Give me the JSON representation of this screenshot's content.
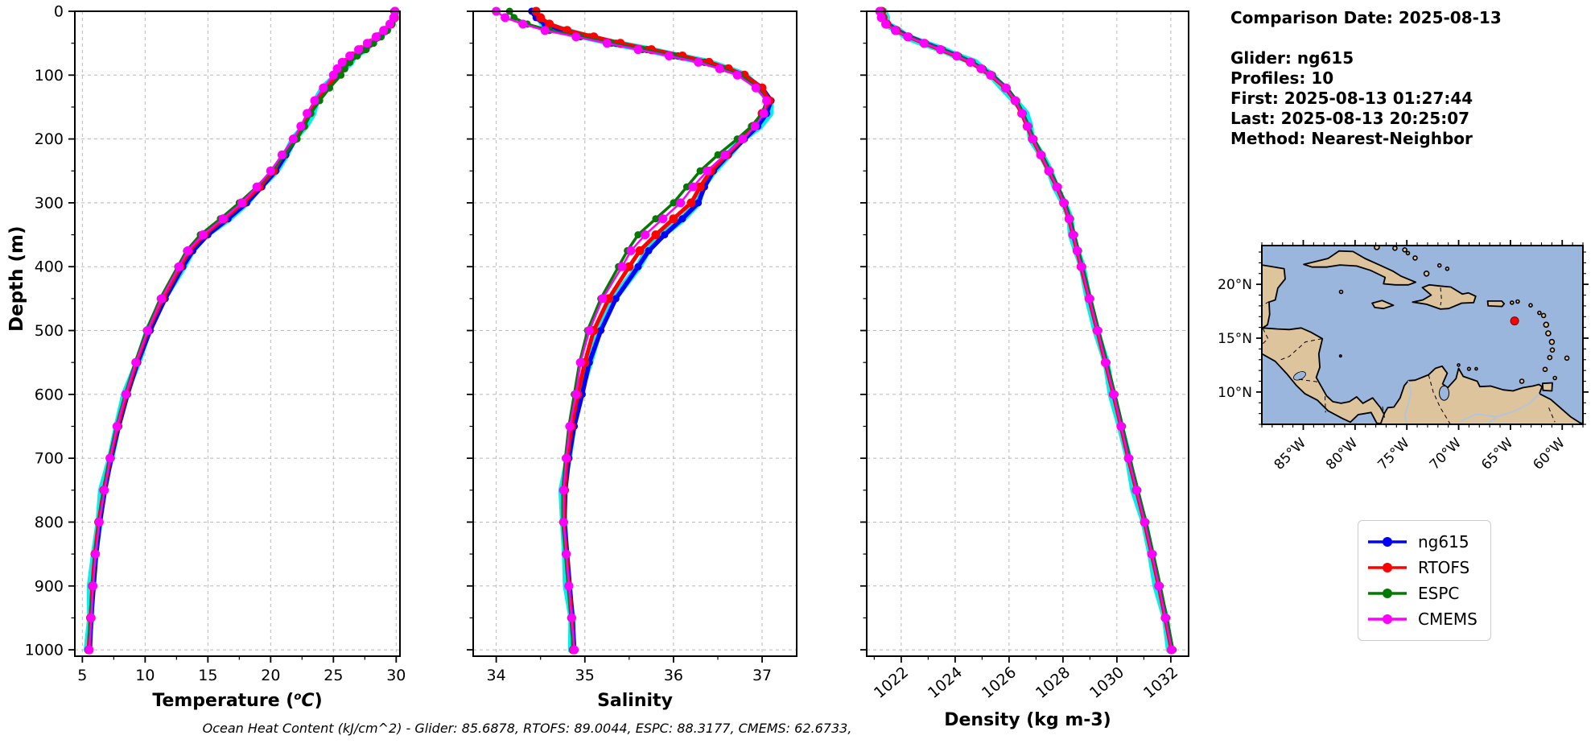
{
  "info_panel": {
    "comparison_date": "Comparison Date: 2025-08-13",
    "glider": "Glider: ng615",
    "profiles": "Profiles: 10",
    "first": "First: 2025-08-13 01:27:44",
    "last": "Last: 2025-08-13 20:25:07",
    "method": "Method: Nearest-Neighbor"
  },
  "caption": "Ocean Heat Content (kJ/cm^2) - Glider: 85.6878,  RTOFS: 89.0044,  ESPC: 88.3177,  CMEMS: 62.6733,",
  "legend": {
    "items": [
      {
        "label": "ng615",
        "color": "#0000ff"
      },
      {
        "label": "RTOFS",
        "color": "#ff0000"
      },
      {
        "label": "ESPC",
        "color": "#007a00"
      },
      {
        "label": "CMEMS",
        "color": "#ff00ff"
      }
    ]
  },
  "colors": {
    "raw_glider_overlay": "#00f0f0",
    "grid": "#b9b9b9",
    "spine": "#000000"
  },
  "depth_axis": {
    "label": "Depth (m)",
    "ticks": [
      0,
      100,
      200,
      300,
      400,
      500,
      600,
      700,
      800,
      900,
      1000
    ],
    "lim": [
      0,
      1010
    ]
  },
  "profile_depths": [
    0,
    10,
    20,
    30,
    40,
    50,
    60,
    70,
    80,
    90,
    100,
    120,
    140,
    160,
    180,
    200,
    225,
    250,
    275,
    300,
    325,
    350,
    375,
    400,
    450,
    500,
    550,
    600,
    650,
    700,
    750,
    800,
    850,
    900,
    950,
    1000
  ],
  "chart_data": [
    {
      "type": "line",
      "id": "temperature",
      "xlabel": {
        "prefix": "Temperature (",
        "sup": "o",
        "italic": "C",
        "suffix": ")"
      },
      "xlim": [
        4.4,
        30.3
      ],
      "xticks": [
        5,
        10,
        15,
        20,
        25,
        30
      ],
      "minor_step": 2.5,
      "rotate_xticklabels": false,
      "ylabel": "Depth (m)",
      "series": [
        {
          "name": "ng615",
          "color": "#0000ff",
          "values": [
            29.8,
            29.8,
            29.6,
            29.2,
            28.7,
            28.1,
            27.4,
            26.7,
            26.1,
            25.7,
            25.3,
            24.5,
            23.7,
            23.1,
            22.6,
            22.0,
            21.2,
            20.4,
            19.3,
            18.1,
            16.6,
            15.0,
            13.8,
            13.0,
            11.6,
            10.4,
            9.4,
            8.6,
            7.9,
            7.3,
            6.8,
            6.4,
            6.1,
            5.9,
            5.7,
            5.6
          ]
        },
        {
          "name": "RTOFS",
          "color": "#ff0000",
          "values": [
            29.9,
            29.85,
            29.6,
            29.1,
            28.5,
            27.9,
            27.2,
            26.5,
            26.0,
            25.6,
            25.2,
            24.4,
            23.6,
            23.0,
            22.5,
            21.9,
            21.0,
            20.2,
            19.1,
            17.8,
            16.3,
            14.7,
            13.5,
            12.8,
            11.4,
            10.2,
            9.3,
            8.5,
            7.8,
            7.2,
            6.7,
            6.3,
            6.0,
            5.8,
            5.65,
            5.5
          ]
        },
        {
          "name": "ESPC",
          "color": "#007a00",
          "values": [
            29.85,
            29.8,
            29.65,
            29.3,
            28.8,
            28.2,
            27.6,
            26.9,
            26.3,
            25.9,
            25.6,
            24.7,
            23.9,
            23.2,
            22.7,
            22.1,
            21.1,
            20.1,
            18.9,
            17.5,
            16.0,
            14.4,
            13.3,
            12.6,
            11.2,
            10.1,
            9.2,
            8.4,
            7.7,
            7.15,
            6.7,
            6.35,
            6.05,
            5.85,
            5.65,
            5.5
          ]
        },
        {
          "name": "CMEMS",
          "color": "#ff00ff",
          "values": [
            29.9,
            29.8,
            29.5,
            29.0,
            28.4,
            27.7,
            27.0,
            26.3,
            25.7,
            25.3,
            25.0,
            24.2,
            23.5,
            22.9,
            22.4,
            21.8,
            20.9,
            20.0,
            18.9,
            17.7,
            16.2,
            14.6,
            13.4,
            12.7,
            11.3,
            10.2,
            9.25,
            8.45,
            7.75,
            7.2,
            6.75,
            6.35,
            6.05,
            5.85,
            5.7,
            5.55
          ]
        }
      ]
    },
    {
      "type": "line",
      "id": "salinity",
      "xlabel": {
        "prefix": "Salinity"
      },
      "xlim": [
        33.74,
        37.39
      ],
      "xticks": [
        34,
        35,
        36,
        37
      ],
      "minor_step": 0.5,
      "rotate_xticklabels": false,
      "series": [
        {
          "name": "ng615",
          "color": "#0000ff",
          "values": [
            34.4,
            34.45,
            34.55,
            34.75,
            35.05,
            35.35,
            35.7,
            36.05,
            36.35,
            36.6,
            36.8,
            37.0,
            37.1,
            37.05,
            36.95,
            36.8,
            36.62,
            36.45,
            36.35,
            36.28,
            36.1,
            35.9,
            35.72,
            35.6,
            35.35,
            35.18,
            35.05,
            34.97,
            34.88,
            34.82,
            34.78,
            34.77,
            34.8,
            34.83,
            34.86,
            34.88
          ]
        },
        {
          "name": "RTOFS",
          "color": "#ff0000",
          "values": [
            34.45,
            34.5,
            34.6,
            34.8,
            35.1,
            35.4,
            35.75,
            36.1,
            36.4,
            36.62,
            36.8,
            37.0,
            37.08,
            37.0,
            36.9,
            36.78,
            36.6,
            36.42,
            36.3,
            36.2,
            36.0,
            35.8,
            35.62,
            35.5,
            35.27,
            35.1,
            35.0,
            34.92,
            34.85,
            34.8,
            34.77,
            34.76,
            34.79,
            34.82,
            34.85,
            34.87
          ]
        },
        {
          "name": "ESPC",
          "color": "#007a00",
          "values": [
            34.15,
            34.2,
            34.35,
            34.6,
            34.95,
            35.3,
            35.65,
            36.0,
            36.3,
            36.55,
            36.75,
            36.95,
            37.05,
            37.0,
            36.88,
            36.72,
            36.5,
            36.3,
            36.15,
            36.0,
            35.8,
            35.6,
            35.48,
            35.38,
            35.18,
            35.03,
            34.94,
            34.88,
            34.82,
            34.78,
            34.75,
            34.75,
            34.78,
            34.81,
            34.84,
            34.87
          ]
        },
        {
          "name": "CMEMS",
          "color": "#ff00ff",
          "values": [
            34.0,
            34.1,
            34.3,
            34.55,
            34.9,
            35.25,
            35.6,
            35.95,
            36.28,
            36.52,
            36.72,
            36.93,
            37.05,
            37.02,
            36.92,
            36.78,
            36.58,
            36.38,
            36.22,
            36.08,
            35.88,
            35.68,
            35.52,
            35.42,
            35.2,
            35.05,
            34.95,
            34.9,
            34.83,
            34.79,
            34.76,
            34.76,
            34.79,
            34.82,
            34.85,
            34.88
          ]
        }
      ]
    },
    {
      "type": "line",
      "id": "density",
      "xlabel": {
        "prefix": "Density (kg m-3)"
      },
      "xlim": [
        1020.72,
        1032.66
      ],
      "xticks": [
        1022,
        1024,
        1026,
        1028,
        1030,
        1032
      ],
      "minor_step": 1,
      "rotate_xticklabels": true,
      "series": [
        {
          "name": "ng615",
          "color": "#0000ff",
          "values": [
            1021.3,
            1021.35,
            1021.5,
            1021.85,
            1022.3,
            1022.9,
            1023.5,
            1024.1,
            1024.6,
            1025.0,
            1025.35,
            1025.9,
            1026.25,
            1026.5,
            1026.7,
            1026.9,
            1027.2,
            1027.5,
            1027.8,
            1028.05,
            1028.25,
            1028.4,
            1028.55,
            1028.7,
            1029.0,
            1029.3,
            1029.6,
            1029.9,
            1030.18,
            1030.45,
            1030.75,
            1031.05,
            1031.32,
            1031.58,
            1031.82,
            1032.05
          ]
        },
        {
          "name": "RTOFS",
          "color": "#ff0000",
          "values": [
            1021.28,
            1021.33,
            1021.47,
            1021.82,
            1022.26,
            1022.86,
            1023.45,
            1024.05,
            1024.56,
            1024.96,
            1025.31,
            1025.87,
            1026.22,
            1026.47,
            1026.67,
            1026.87,
            1027.17,
            1027.47,
            1027.77,
            1028.02,
            1028.22,
            1028.37,
            1028.52,
            1028.67,
            1028.97,
            1029.27,
            1029.57,
            1029.87,
            1030.15,
            1030.42,
            1030.72,
            1031.02,
            1031.29,
            1031.55,
            1031.79,
            1032.02
          ]
        },
        {
          "name": "ESPC",
          "color": "#007a00",
          "values": [
            1021.26,
            1021.31,
            1021.46,
            1021.81,
            1022.27,
            1022.88,
            1023.53,
            1024.13,
            1024.64,
            1025.04,
            1025.39,
            1025.93,
            1026.28,
            1026.53,
            1026.73,
            1026.93,
            1027.23,
            1027.53,
            1027.83,
            1028.08,
            1028.28,
            1028.43,
            1028.58,
            1028.73,
            1029.03,
            1029.33,
            1029.63,
            1029.93,
            1030.21,
            1030.48,
            1030.78,
            1031.08,
            1031.35,
            1031.61,
            1031.85,
            1032.08
          ]
        },
        {
          "name": "CMEMS",
          "color": "#ff00ff",
          "values": [
            1021.2,
            1021.26,
            1021.42,
            1021.78,
            1022.24,
            1022.84,
            1023.46,
            1024.06,
            1024.57,
            1024.97,
            1025.32,
            1025.88,
            1026.23,
            1026.48,
            1026.68,
            1026.88,
            1027.18,
            1027.48,
            1027.78,
            1028.03,
            1028.23,
            1028.38,
            1028.53,
            1028.68,
            1028.98,
            1029.28,
            1029.58,
            1029.88,
            1030.16,
            1030.43,
            1030.73,
            1031.03,
            1031.3,
            1031.56,
            1031.8,
            1032.03
          ]
        }
      ]
    }
  ],
  "map": {
    "extent": {
      "lon_min": -89,
      "lon_max": -58,
      "lat_min": 7,
      "lat_max": 23.6
    },
    "x_tick_labels": [
      "85°W",
      "80°W",
      "75°W",
      "70°W",
      "65°W",
      "60°W"
    ],
    "x_tick_lons": [
      -85,
      -80,
      -75,
      -70,
      -65,
      -60
    ],
    "y_tick_labels": [
      "20°N",
      "15°N",
      "10°N"
    ],
    "y_tick_lats": [
      20,
      15,
      10
    ],
    "ocean_color": "#9ab6dd",
    "land_color": "#ddc49c",
    "river_color": "#a9c6e8",
    "glider_marker": {
      "lon": -64.6,
      "lat": 16.6,
      "color": "#ff0000"
    }
  }
}
